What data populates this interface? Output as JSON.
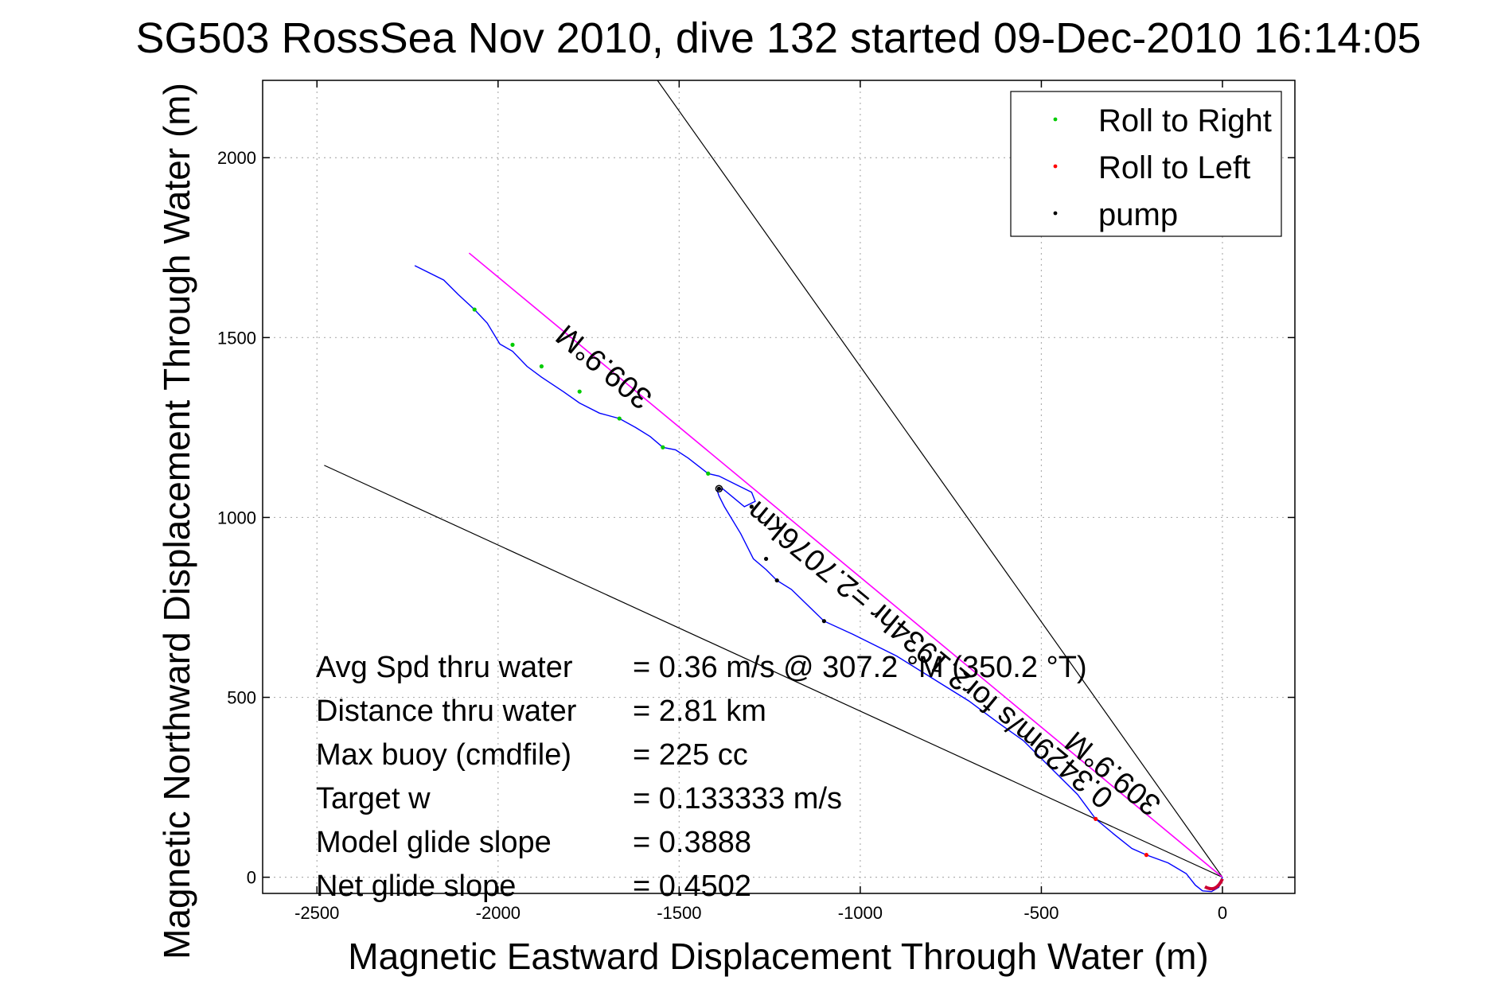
{
  "chart_data": {
    "type": "line",
    "title": "SG503 RossSea Nov 2010, dive 132 started 09-Dec-2010 16:14:05",
    "xlabel": "Magnetic Eastward Displacement Through Water (m)",
    "ylabel": "Magnetic Northward Displacement Through Water (m)",
    "xlim": [
      -2650,
      200
    ],
    "ylim": [
      -45,
      2215
    ],
    "xticks": [
      -2500,
      -2000,
      -1500,
      -1000,
      -500,
      0
    ],
    "yticks": [
      0,
      500,
      1000,
      1500,
      2000
    ],
    "grid": true,
    "legend_position": "top-right",
    "legend": [
      {
        "label": "Roll to Right",
        "color": "#00cc00"
      },
      {
        "label": "Roll to Left",
        "color": "#ff0000"
      },
      {
        "label": "pump",
        "color": "#000000"
      }
    ],
    "colors": {
      "track": "#0000ff",
      "heading_line": "#ff00ff",
      "cone": "#000000"
    },
    "track": {
      "x": [
        -2230,
        -2150,
        -2110,
        -2065,
        -2030,
        -1995,
        -1960,
        -1920,
        -1880,
        -1820,
        -1775,
        -1720,
        -1665,
        -1620,
        -1580,
        -1545,
        -1510,
        -1475,
        -1420,
        -1390,
        -1340,
        -1300,
        -1290,
        -1320,
        -1380,
        -1395,
        -1390,
        -1375,
        -1330,
        -1295,
        -1260,
        -1230,
        -1190,
        -1100,
        -1020,
        -900,
        -780,
        -700,
        -620,
        -550,
        -480,
        -400,
        -350,
        -300,
        -250,
        -210,
        -150,
        -100,
        -75,
        -55,
        -30,
        -10,
        0
      ],
      "y": [
        1700,
        1660,
        1620,
        1578,
        1540,
        1482,
        1462,
        1420,
        1390,
        1350,
        1318,
        1290,
        1275,
        1250,
        1225,
        1195,
        1188,
        1165,
        1122,
        1115,
        1090,
        1070,
        1045,
        1030,
        1080,
        1075,
        1060,
        1030,
        955,
        885,
        855,
        825,
        800,
        712,
        675,
        615,
        540,
        490,
        430,
        380,
        310,
        230,
        162,
        120,
        80,
        62,
        40,
        10,
        -22,
        -38,
        -40,
        -28,
        0
      ]
    },
    "roll_right_points": {
      "x": [
        -2065,
        -1960,
        -1880,
        -1775,
        -1665,
        -1545,
        -1420
      ],
      "y": [
        1578,
        1480,
        1420,
        1350,
        1275,
        1195,
        1122
      ]
    },
    "roll_left_points": {
      "x": [
        -350,
        -210
      ],
      "y": [
        162,
        62
      ]
    },
    "pump_points": {
      "x": [
        -1390,
        -1300,
        -1260,
        -1230,
        -1100
      ],
      "y": [
        1080,
        1030,
        885,
        825,
        712
      ]
    },
    "heading_line": {
      "x": [
        -2080,
        0
      ],
      "y": [
        1735,
        0
      ]
    },
    "cone_lines": [
      {
        "x": [
          -2480,
          0
        ],
        "y": [
          1145,
          0
        ]
      },
      {
        "x": [
          -1560,
          0
        ],
        "y": [
          2215,
          0
        ]
      }
    ],
    "annotations": [
      {
        "text": "309.9°M",
        "x": -1690,
        "y": 1440,
        "angle": 39.5
      },
      {
        "text": "0.3429m/s for2.1934hr =2.7076km",
        "x": -790,
        "y": 640,
        "angle": 39.5
      },
      {
        "text": "309.9°M",
        "x": -285,
        "y": 310,
        "angle": 39.5
      }
    ],
    "stats": [
      {
        "label": "Avg Spd thru water",
        "value": "=  0.36 m/s @ 307.2 °M (350.2 °T)"
      },
      {
        "label": "Distance thru water",
        "value": "=  2.81 km"
      },
      {
        "label": "Max buoy (cmdfile)",
        "value": "= 225 cc"
      },
      {
        "label": "Target w",
        "value": "= 0.133333 m/s"
      },
      {
        "label": "Model glide slope",
        "value": "= 0.3888"
      },
      {
        "label": "Net glide slope",
        "value": "= 0.4502"
      }
    ]
  }
}
